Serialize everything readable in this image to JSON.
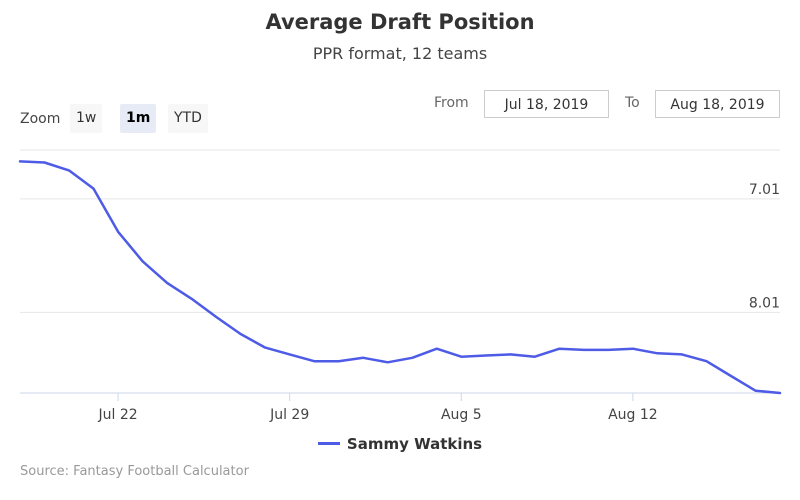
{
  "chart_data": {
    "type": "line",
    "title": "Average Draft Position",
    "subtitle": "PPR format, 12 teams",
    "x": [
      "2019-07-18",
      "2019-07-19",
      "2019-07-20",
      "2019-07-21",
      "2019-07-22",
      "2019-07-23",
      "2019-07-24",
      "2019-07-25",
      "2019-07-26",
      "2019-07-27",
      "2019-07-28",
      "2019-07-29",
      "2019-07-30",
      "2019-07-31",
      "2019-08-01",
      "2019-08-02",
      "2019-08-03",
      "2019-08-04",
      "2019-08-05",
      "2019-08-06",
      "2019-08-07",
      "2019-08-08",
      "2019-08-09",
      "2019-08-10",
      "2019-08-11",
      "2019-08-12",
      "2019-08-13",
      "2019-08-14",
      "2019-08-15",
      "2019-08-16",
      "2019-08-17",
      "2019-08-18"
    ],
    "series": [
      {
        "name": "Sammy Watkins",
        "color": "#4d5be6",
        "values": [
          6.68,
          6.69,
          6.76,
          6.92,
          7.3,
          7.56,
          7.75,
          7.89,
          8.05,
          8.2,
          8.32,
          8.38,
          8.44,
          8.44,
          8.41,
          8.45,
          8.41,
          8.33,
          8.4,
          8.39,
          8.38,
          8.4,
          8.33,
          8.34,
          8.34,
          8.33,
          8.37,
          8.38,
          8.44,
          8.57,
          8.7,
          8.72
        ]
      }
    ],
    "x_ticks": [
      "Jul 22",
      "Jul 29",
      "Aug 5",
      "Aug 12"
    ],
    "x_tick_dates": [
      "2019-07-22",
      "2019-07-29",
      "2019-08-05",
      "2019-08-12"
    ],
    "y_ticks": [
      "7.01",
      "8.01"
    ],
    "y_tick_values": [
      7.01,
      8.01
    ],
    "ylim": [
      6.58,
      8.72
    ],
    "y_reversed": true,
    "grid": true,
    "legend_position": "bottom-center"
  },
  "zoom": {
    "label": "Zoom",
    "buttons": [
      {
        "label": "1w",
        "active": false
      },
      {
        "label": "1m",
        "active": true
      },
      {
        "label": "YTD",
        "active": false
      }
    ]
  },
  "range": {
    "from_label": "From",
    "from_value": "Jul 18, 2019",
    "to_label": "To",
    "to_value": "Aug 18, 2019"
  },
  "credits": "Source: Fantasy Football Calculator",
  "colors": {
    "grid": "#e6e6e6",
    "axis": "#ccd6eb",
    "line": "#4d5be6"
  }
}
